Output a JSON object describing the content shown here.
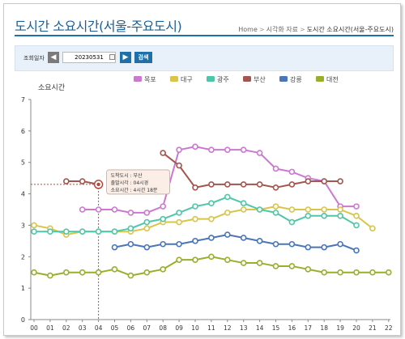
{
  "page": {
    "title": "도시간 소요시간(서울-주요도시)",
    "breadcrumb": [
      "Home",
      "시각화 자료",
      "도시간 소요시간(서울-주요도시)"
    ]
  },
  "search": {
    "label": "조회일자",
    "date_value": "20230531",
    "button_label": "검색",
    "prev_icon": "chevron-left-icon",
    "next_icon": "chevron-right-icon",
    "calendar_icon": "calendar-icon"
  },
  "chart_data": {
    "type": "line",
    "ylabel": "소요시간",
    "xlabel": "",
    "ylim": [
      0,
      7
    ],
    "yticks": [
      "0",
      "1",
      "2",
      "3",
      "4",
      "5",
      "6",
      "7"
    ],
    "categories": [
      "00",
      "01",
      "02",
      "03",
      "04",
      "05",
      "06",
      "07",
      "08",
      "09",
      "10",
      "11",
      "12",
      "13",
      "14",
      "15",
      "16",
      "17",
      "18",
      "19",
      "20",
      "21",
      "22"
    ],
    "legend_position": "top-center",
    "grid": false,
    "series": [
      {
        "name": "목포",
        "color": "#cc77d0",
        "values": [
          null,
          null,
          null,
          3.5,
          3.5,
          3.5,
          3.4,
          3.4,
          3.6,
          5.4,
          5.5,
          5.4,
          5.4,
          5.4,
          5.3,
          4.8,
          4.7,
          4.5,
          4.4,
          3.6,
          3.6,
          null,
          null
        ]
      },
      {
        "name": "대구",
        "color": "#d8c54a",
        "values": [
          3.0,
          2.9,
          2.7,
          2.8,
          2.8,
          2.8,
          2.8,
          2.9,
          3.1,
          3.1,
          3.2,
          3.2,
          3.4,
          3.5,
          3.5,
          3.6,
          3.5,
          3.5,
          3.5,
          3.5,
          3.3,
          2.9,
          null
        ]
      },
      {
        "name": "광주",
        "color": "#4fc6a8",
        "values": [
          2.8,
          2.8,
          2.8,
          2.8,
          2.8,
          2.8,
          2.9,
          3.1,
          3.2,
          3.4,
          3.6,
          3.7,
          3.9,
          3.7,
          3.5,
          3.4,
          3.1,
          3.3,
          3.3,
          3.3,
          3.0,
          null,
          null
        ]
      },
      {
        "name": "부산",
        "color": "#a4554e",
        "values": [
          null,
          null,
          4.4,
          4.4,
          4.3,
          null,
          null,
          null,
          5.3,
          4.9,
          4.2,
          4.3,
          4.3,
          4.3,
          4.3,
          4.2,
          4.3,
          4.4,
          4.4,
          4.4,
          null,
          null,
          null
        ]
      },
      {
        "name": "강릉",
        "color": "#4a75b8",
        "values": [
          null,
          null,
          null,
          null,
          null,
          2.3,
          2.4,
          2.3,
          2.4,
          2.4,
          2.5,
          2.6,
          2.7,
          2.6,
          2.5,
          2.4,
          2.4,
          2.3,
          2.3,
          2.4,
          2.2,
          null,
          null
        ]
      },
      {
        "name": "대전",
        "color": "#9aae2c",
        "values": [
          1.5,
          1.4,
          1.5,
          1.5,
          1.5,
          1.6,
          1.4,
          1.5,
          1.6,
          1.9,
          1.9,
          2.0,
          1.9,
          1.8,
          1.8,
          1.7,
          1.7,
          1.6,
          1.5,
          1.5,
          1.5,
          1.5,
          1.5
        ]
      }
    ],
    "tooltip": {
      "series": "부산",
      "x": "04",
      "y": 4.3,
      "lines": [
        "도착도시 : 부산",
        "출발시각 : 04시경",
        "소요시간 : 4시간 18분"
      ]
    }
  }
}
